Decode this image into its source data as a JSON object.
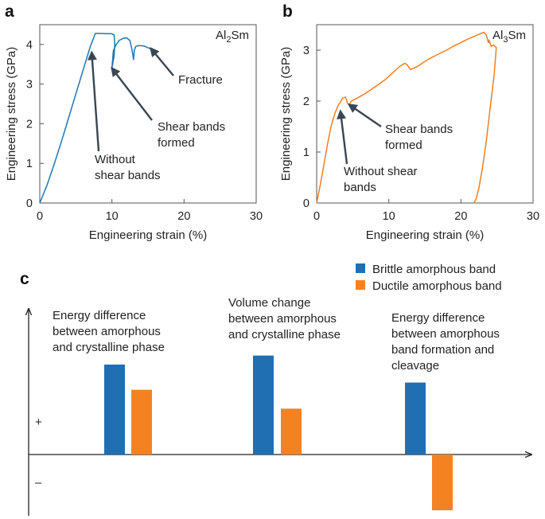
{
  "colors": {
    "panel_a": "#1f77b4",
    "panel_b": "#f07f21",
    "brittle": "#1f6fb2",
    "ductile": "#f58220",
    "arrow": "#3a4654"
  },
  "chart_data": [
    {
      "panel": "a",
      "type": "line",
      "label": "Al",
      "label_sub": "2",
      "label_suffix": "Sm",
      "xlabel": "Engineering strain (%)",
      "ylabel": "Engineering stress (GPa)",
      "xlim": [
        0,
        30
      ],
      "ylim": [
        0,
        4.5
      ],
      "xticks": [
        "0",
        "10",
        "20",
        "30"
      ],
      "yticks": [
        "0",
        "1",
        "2",
        "3",
        "4"
      ],
      "series": [
        {
          "name": "Al2Sm",
          "x": [
            0,
            1,
            2,
            3,
            4,
            5,
            6,
            7,
            7.7,
            8.0,
            10.0,
            10.3,
            10.4,
            10.3,
            10.0,
            10.2,
            10.6,
            11.0,
            11.5,
            12.0,
            12.5,
            12.8,
            13.0,
            13.1,
            13.3,
            13.6,
            14.0,
            14.5,
            15.0,
            15.5,
            15.8
          ],
          "y": [
            0,
            0.45,
            0.98,
            1.55,
            2.15,
            2.75,
            3.35,
            3.95,
            4.28,
            4.28,
            4.27,
            4.24,
            4.0,
            3.7,
            3.4,
            3.85,
            4.0,
            4.1,
            4.15,
            4.17,
            4.1,
            3.85,
            3.62,
            3.85,
            3.95,
            3.97,
            3.97,
            3.96,
            3.92,
            3.88,
            3.82
          ]
        }
      ],
      "annotations": [
        {
          "lines": [
            "Fracture"
          ],
          "target_x": 15.4,
          "target_y": 3.9
        },
        {
          "lines": [
            "Shear bands",
            "formed"
          ],
          "target_x": 10.0,
          "target_y": 3.4
        },
        {
          "lines": [
            "Without",
            "shear bands"
          ],
          "target_x": 7.2,
          "target_y": 3.8
        }
      ]
    },
    {
      "panel": "b",
      "type": "line",
      "label": "Al",
      "label_sub": "3",
      "label_suffix": "Sm",
      "xlabel": "Engineering strain (%)",
      "ylabel": "Engineering stress (GPa)",
      "xlim": [
        0,
        30
      ],
      "ylim": [
        0,
        3.5
      ],
      "xticks": [
        "0",
        "10",
        "20",
        "30"
      ],
      "yticks": [
        "0",
        "1",
        "2",
        "3"
      ],
      "series": [
        {
          "name": "Al3Sm",
          "x": [
            0,
            0.5,
            1,
            1.5,
            2,
            2.5,
            3,
            3.3,
            3.6,
            4.0,
            4.3,
            4.5,
            4.8,
            5.5,
            6.5,
            7.5,
            8.5,
            9.5,
            10.5,
            11.5,
            12.2,
            12.5,
            13.0,
            14,
            15,
            16,
            17,
            18,
            19,
            20,
            21,
            22,
            22.8,
            23.2,
            23.5,
            23.8,
            23.9,
            24.2,
            24.5,
            24.7,
            24.9,
            24.6,
            24.0,
            23.5,
            23.0,
            22.5,
            22.1,
            21.8
          ],
          "y": [
            0,
            0.35,
            0.75,
            1.15,
            1.5,
            1.75,
            1.92,
            1.98,
            2.06,
            2.08,
            1.95,
            1.93,
            2.0,
            2.05,
            2.13,
            2.22,
            2.32,
            2.42,
            2.55,
            2.68,
            2.74,
            2.72,
            2.62,
            2.68,
            2.78,
            2.86,
            2.93,
            3.0,
            3.08,
            3.15,
            3.22,
            3.28,
            3.33,
            3.35,
            3.3,
            3.15,
            3.2,
            3.07,
            3.1,
            3.08,
            3.05,
            2.5,
            1.8,
            1.2,
            0.7,
            0.3,
            0.08,
            0.0
          ]
        }
      ],
      "annotations": [
        {
          "lines": [
            "Shear bands",
            "formed"
          ],
          "target_x": 4.5,
          "target_y": 1.93
        },
        {
          "lines": [
            "Without shear",
            "bands"
          ],
          "target_x": 3.3,
          "target_y": 1.8
        }
      ]
    },
    {
      "panel": "c",
      "type": "bar",
      "legend": [
        "Brittle amorphous band",
        "Ductile amorphous band"
      ],
      "legend_position": "top-right",
      "y_signs": [
        "+",
        "–"
      ],
      "categories": [
        {
          "lines": [
            "Energy difference",
            "between amorphous",
            "and crystalline phase"
          ]
        },
        {
          "lines": [
            "Volume change",
            "between amorphous",
            "and crystalline phase"
          ]
        },
        {
          "lines": [
            "Energy difference",
            "between amorphous",
            "band formation and",
            "cleavage"
          ]
        }
      ],
      "series": [
        {
          "name": "Brittle amorphous band",
          "values": [
            1.0,
            1.1,
            0.8
          ]
        },
        {
          "name": "Ductile amorphous band",
          "values": [
            0.72,
            0.51,
            -0.62
          ]
        }
      ]
    }
  ]
}
